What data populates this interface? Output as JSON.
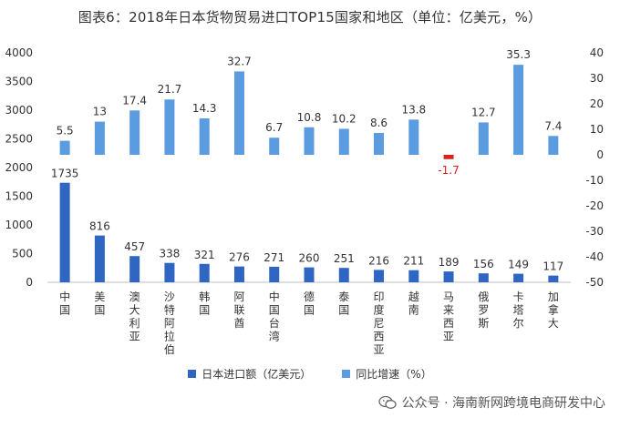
{
  "title": "图表6：2018年日本货物贸易进口TOP15国家和地区（单位：亿美元，%）",
  "legend": {
    "bar_label": "日本进口额（亿美元）",
    "rate_label": "同比增速（%）"
  },
  "watermark": {
    "text": "公众号 · 海南新网跨境电商研发中心"
  },
  "colors": {
    "import_bar": "#2F66C2",
    "growth_bar": "#5B9BE0",
    "negative_growth": "#E02020"
  },
  "chart_data": {
    "type": "bar",
    "title": "图表6：2018年日本货物贸易进口TOP15国家和地区（单位：亿美元，%）",
    "categories": [
      "中国",
      "美国",
      "澳大利亚",
      "沙特阿拉伯",
      "韩国",
      "阿联酋",
      "中国台湾",
      "德国",
      "泰国",
      "印度尼西亚",
      "越南",
      "马来西亚",
      "俄罗斯",
      "卡塔尔",
      "加拿大"
    ],
    "series": [
      {
        "name": "日本进口额（亿美元）",
        "axis": "left",
        "values": [
          1735,
          816,
          457,
          338,
          321,
          276,
          271,
          260,
          251,
          216,
          211,
          189,
          156,
          149,
          117
        ]
      },
      {
        "name": "同比增速（%）",
        "axis": "right",
        "values": [
          5.5,
          13,
          17.4,
          21.7,
          14.3,
          32.7,
          6.7,
          10.8,
          10.2,
          8.6,
          13.8,
          -1.7,
          12.7,
          35.3,
          7.4
        ]
      }
    ],
    "left_axis": {
      "ylim": [
        0,
        4000
      ],
      "ticks": [
        0,
        500,
        1000,
        1500,
        2000,
        2500,
        3000,
        3500,
        4000
      ]
    },
    "right_axis": {
      "ylim": [
        -50,
        40
      ],
      "ticks": [
        -50,
        -40,
        -30,
        -20,
        -10,
        0,
        10,
        20,
        30,
        40
      ]
    },
    "legend_position": "bottom",
    "grid": false
  }
}
